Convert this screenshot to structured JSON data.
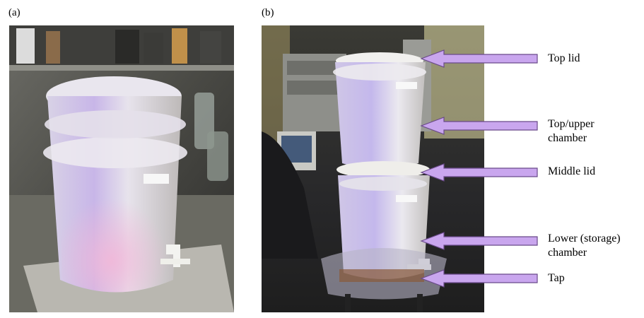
{
  "panels": [
    {
      "label": "(a)"
    },
    {
      "label": "(b)"
    }
  ],
  "callouts": [
    {
      "lines": [
        "Top lid"
      ]
    },
    {
      "lines": [
        "Top/upper",
        "chamber"
      ]
    },
    {
      "lines": [
        "Middle lid"
      ]
    },
    {
      "lines": [
        "Lower (storage)",
        "chamber"
      ]
    },
    {
      "lines": [
        "Tap"
      ]
    }
  ],
  "colors": {
    "arrow_fill": "#c9a6ee",
    "arrow_stroke": "#6a4a8a"
  }
}
